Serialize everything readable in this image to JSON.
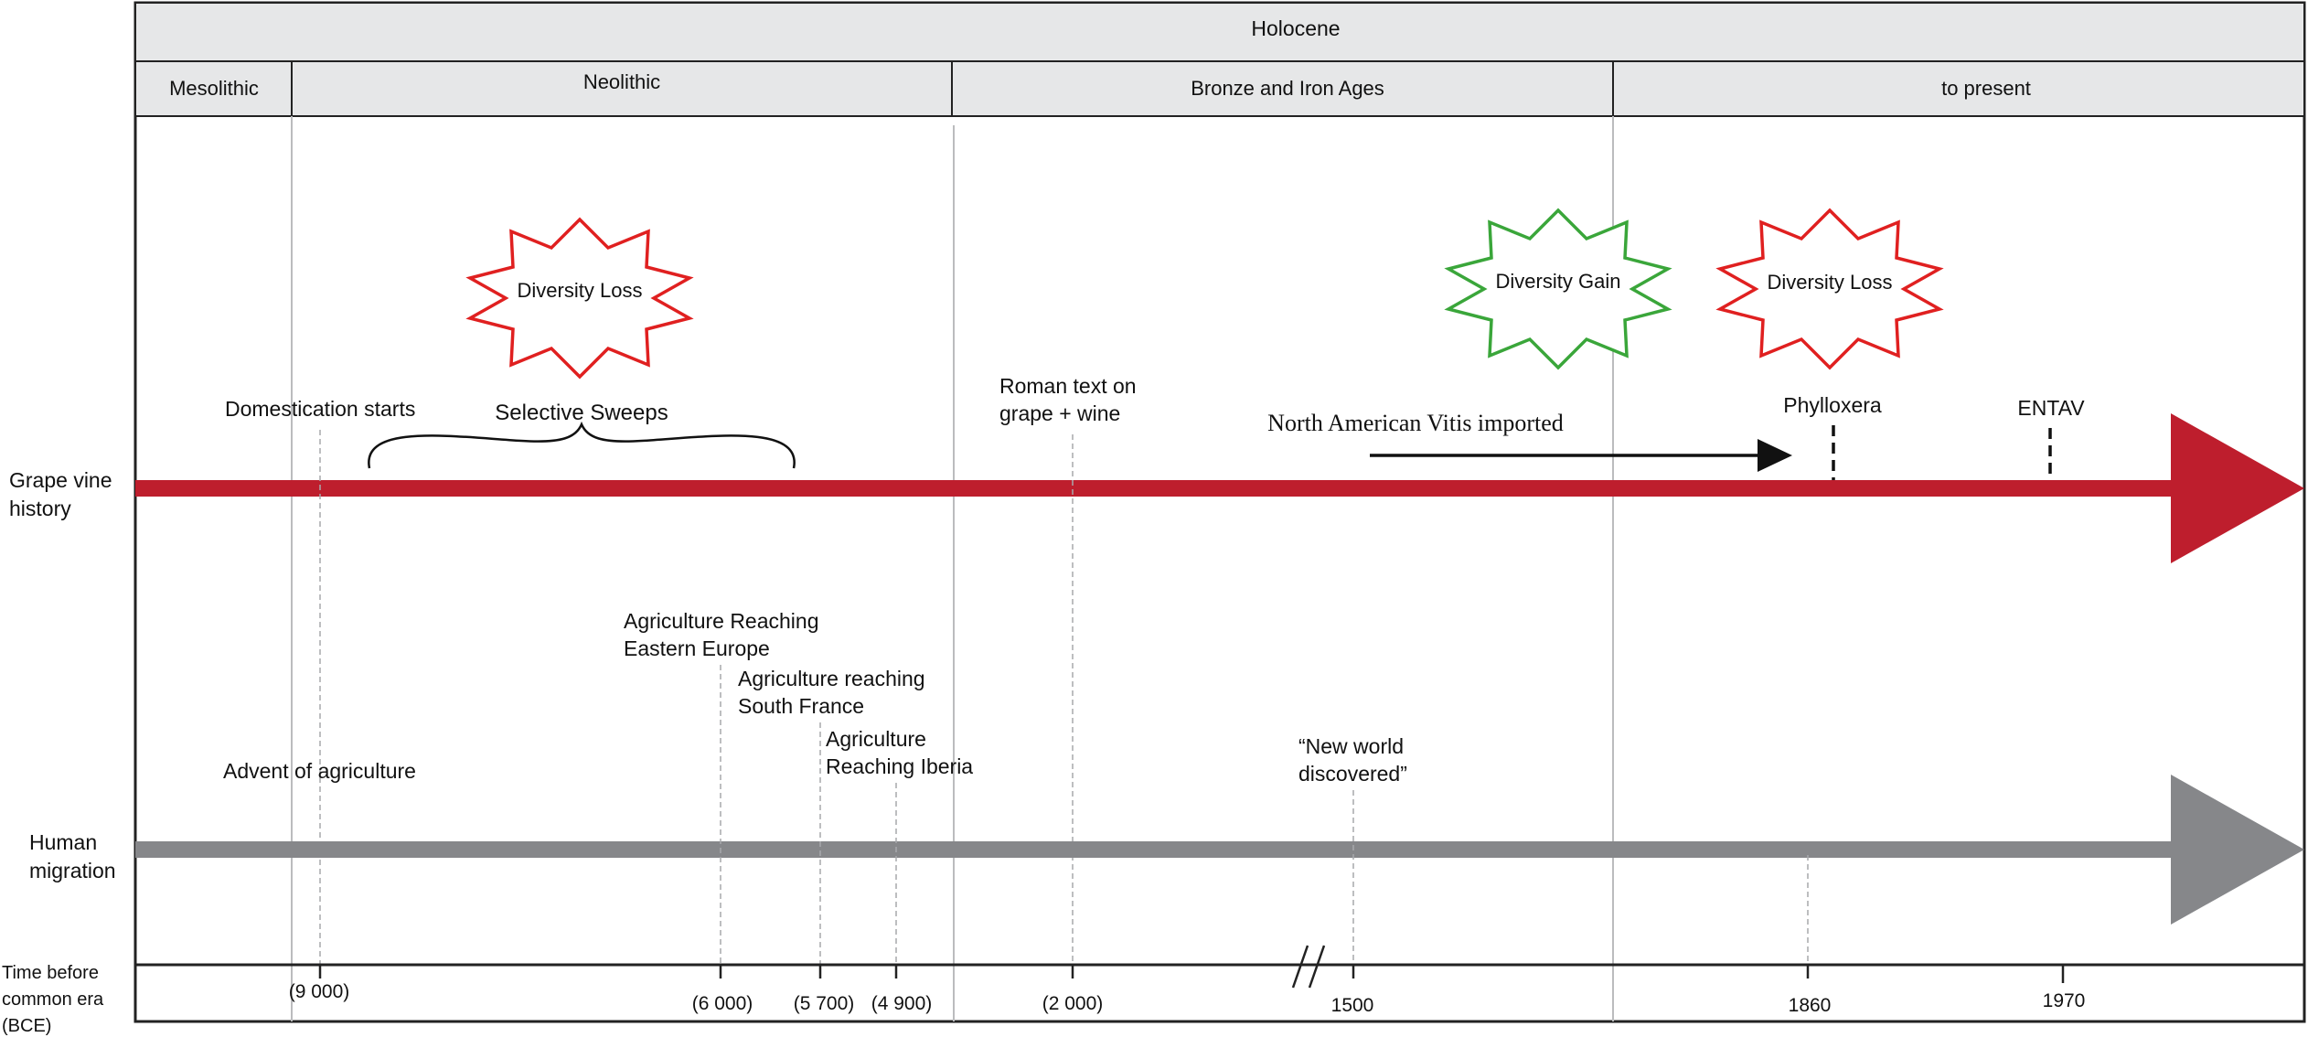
{
  "header": {
    "epoch": "Holocene",
    "periods": [
      "Mesolithic",
      "Neolithic",
      "Bronze and Iron Ages",
      "to present"
    ]
  },
  "rows": {
    "grape_label": [
      "Grape vine",
      "history"
    ],
    "human_label": [
      "Human",
      "migration"
    ],
    "time_label": [
      "Time before",
      "common era",
      "(BCE)"
    ]
  },
  "diversity_bursts": [
    {
      "label": "Diversity Loss",
      "color": "#e02020"
    },
    {
      "label": "Diversity Gain",
      "color": "#3aa63a"
    },
    {
      "label": "Diversity Loss",
      "color": "#e02020"
    }
  ],
  "grape_events": {
    "domestication": "Domestication starts",
    "selective_sweeps": "Selective Sweeps",
    "roman_text": [
      "Roman text on",
      "grape + wine"
    ],
    "north_american": "North American Vitis imported",
    "phylloxera": "Phylloxera",
    "entav": "ENTAV"
  },
  "human_events": {
    "advent": "Advent of agriculture",
    "eastern_europe": [
      "Agriculture Reaching",
      "Eastern Europe"
    ],
    "south_france": [
      "Agriculture reaching",
      "South France"
    ],
    "iberia": [
      "Agriculture",
      "Reaching Iberia"
    ],
    "new_world": [
      "“New world",
      "discovered”"
    ]
  },
  "time_ticks": [
    "(9 000)",
    "(6 000)",
    "(5 700)",
    "(4 900)",
    "(2 000)",
    "1500",
    "1860",
    "1970"
  ],
  "colors": {
    "grape_arrow": "#be1e2d",
    "human_arrow": "#86878a",
    "header_fill": "#e6e7e8",
    "loss": "#e02020",
    "gain": "#3aa63a"
  }
}
